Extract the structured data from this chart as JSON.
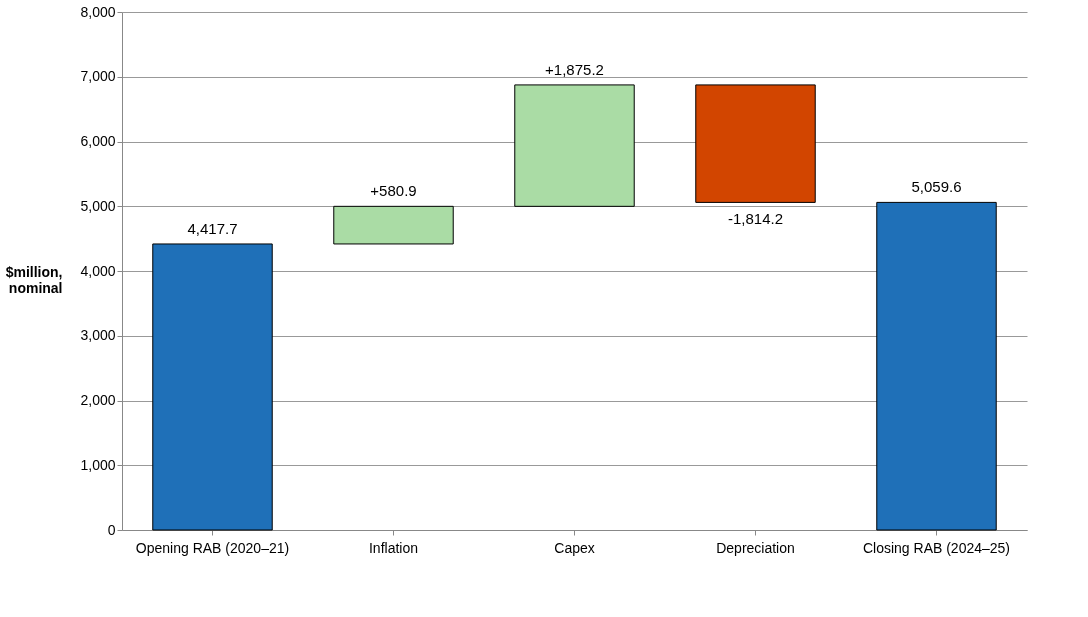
{
  "chart_data": {
    "type": "bar",
    "ylabel": "$million, nominal",
    "categories": [
      "Opening RAB (2020–21)",
      "Inflation",
      "Capex",
      "Depreciation",
      "Closing RAB (2024–25)"
    ],
    "values": [
      4417.7,
      580.9,
      1875.2,
      -1814.2,
      5059.6
    ],
    "base": [
      0,
      4417.7,
      4998.6,
      6873.8,
      0
    ],
    "colors": [
      "#1f70b8",
      "#aadca5",
      "#aadca5",
      "#d24500",
      "#1f70b8"
    ],
    "value_labels": [
      "4,417.7",
      "+580.9",
      "+1,875.2",
      "-1,814.2",
      "5,059.6"
    ],
    "ylim": [
      0,
      8000
    ],
    "yticks": [
      0,
      {
        "value": 1000,
        "label": "1,000"
      },
      {
        "value": 2000,
        "label": "2,000"
      },
      {
        "value": 3000,
        "label": "3,000"
      },
      {
        "value": 4000,
        "label": "4,000"
      },
      {
        "value": 5000,
        "label": "5,000"
      },
      {
        "value": 6000,
        "label": "6,000"
      },
      {
        "value": 7000,
        "label": "7,000"
      },
      {
        "value": 8000,
        "label": "8,000"
      }
    ],
    "grid": "y"
  }
}
